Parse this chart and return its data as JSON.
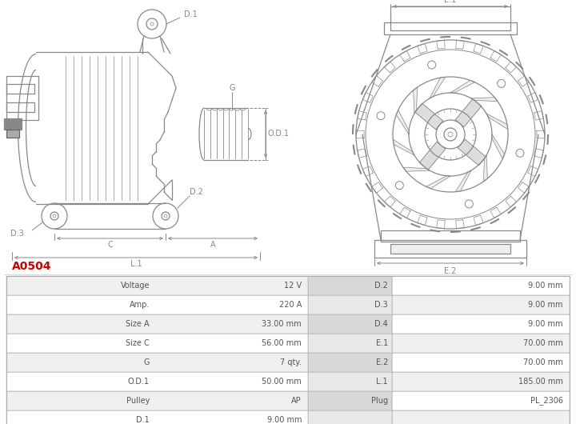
{
  "title": "A0504",
  "title_color": "#cc0000",
  "bg_color": "#ffffff",
  "table_rows": [
    [
      "Voltage",
      "12 V",
      "D.2",
      "9.00 mm"
    ],
    [
      "Amp.",
      "220 A",
      "D.3",
      "9.00 mm"
    ],
    [
      "Size A",
      "33.00 mm",
      "D.4",
      "9.00 mm"
    ],
    [
      "Size C",
      "56.00 mm",
      "E.1",
      "70.00 mm"
    ],
    [
      "G",
      "7 qty.",
      "E.2",
      "70.00 mm"
    ],
    [
      "O.D.1",
      "50.00 mm",
      "L.1",
      "185.00 mm"
    ],
    [
      "Pulley",
      "AP",
      "Plug",
      "PL_2306"
    ],
    [
      "D.1",
      "9.00 mm",
      "",
      ""
    ]
  ],
  "line_color": "#888888",
  "dim_color": "#888888",
  "text_color": "#555555",
  "font_size": 7.0,
  "table_odd_bg": "#f0f0f0",
  "table_even_bg": "#ffffff",
  "table_mid_bg": "#d8d8d8",
  "table_mid2_bg": "#e8e8e8"
}
